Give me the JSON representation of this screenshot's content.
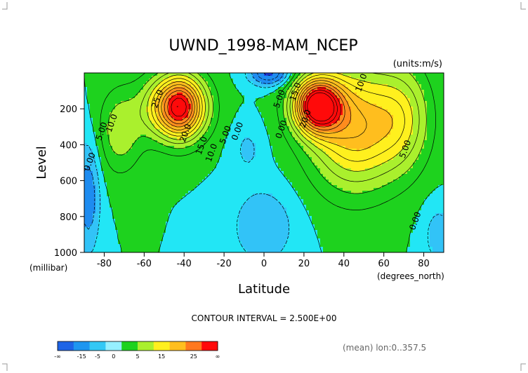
{
  "chart_data": {
    "type": "contour",
    "title": "UWND_1998-MAM_NCEP",
    "units_label": "(units:m/s)",
    "ylabel": "Level",
    "y_units": "(millibar)",
    "xlabel": "Latitude",
    "x_units": "(degrees_north)",
    "xlim": [
      -90,
      90
    ],
    "ylim": [
      0,
      1000
    ],
    "y_reversed": true,
    "x_ticks": [
      -80,
      -60,
      -40,
      -20,
      0,
      20,
      40,
      60,
      80
    ],
    "y_ticks": [
      200,
      400,
      600,
      800,
      1000
    ],
    "contour_interval_text": "CONTOUR INTERVAL = 2.500E+00",
    "footer_text": "(mean) lon:0..357.5",
    "contour_labels": [
      {
        "text": "25.0",
        "lat": -52,
        "p": 150
      },
      {
        "text": "10.0",
        "lat": -75,
        "p": 285
      },
      {
        "text": "5.00",
        "lat": -80,
        "p": 330
      },
      {
        "text": "0.00",
        "lat": -86,
        "p": 500
      },
      {
        "text": "20.0",
        "lat": -38,
        "p": 340
      },
      {
        "text": "15.0",
        "lat": -30,
        "p": 410
      },
      {
        "text": "10.0",
        "lat": -25,
        "p": 450
      },
      {
        "text": "5.00",
        "lat": -18,
        "p": 350
      },
      {
        "text": "0.00",
        "lat": -12,
        "p": 330
      },
      {
        "text": "5.00",
        "lat": 9,
        "p": 150
      },
      {
        "text": "15.0",
        "lat": 17,
        "p": 110
      },
      {
        "text": "10.0",
        "lat": 50,
        "p": 60
      },
      {
        "text": "20.0",
        "lat": 22,
        "p": 260
      },
      {
        "text": "0.00",
        "lat": 10,
        "p": 320
      },
      {
        "text": "5.00",
        "lat": 72,
        "p": 430
      },
      {
        "text": "0.00",
        "lat": 77,
        "p": 830
      }
    ],
    "colorbar": {
      "colors": [
        "#1e64e6",
        "#1e96f0",
        "#33c8f5",
        "#96f0ff",
        "#1ed21e",
        "#aaf02d",
        "#fff01e",
        "#ffbe1e",
        "#ff781e",
        "#ff0a0a"
      ],
      "labels": [
        "-∞",
        "-15",
        "-5",
        "0",
        "5",
        "15",
        "25",
        "∞"
      ]
    },
    "fill_colors": {
      "neg_deep": "#1e3ce6",
      "neg_mid": "#1e8cf0",
      "neg_light": "#32c3f7",
      "near_zero": "#22e6f5",
      "low": "#1ed21e",
      "mid_low": "#aaf02d",
      "mid": "#fff01e",
      "mid_high": "#ffbe1e",
      "high": "#ff8c1e",
      "max": "#ff0a0a"
    }
  }
}
